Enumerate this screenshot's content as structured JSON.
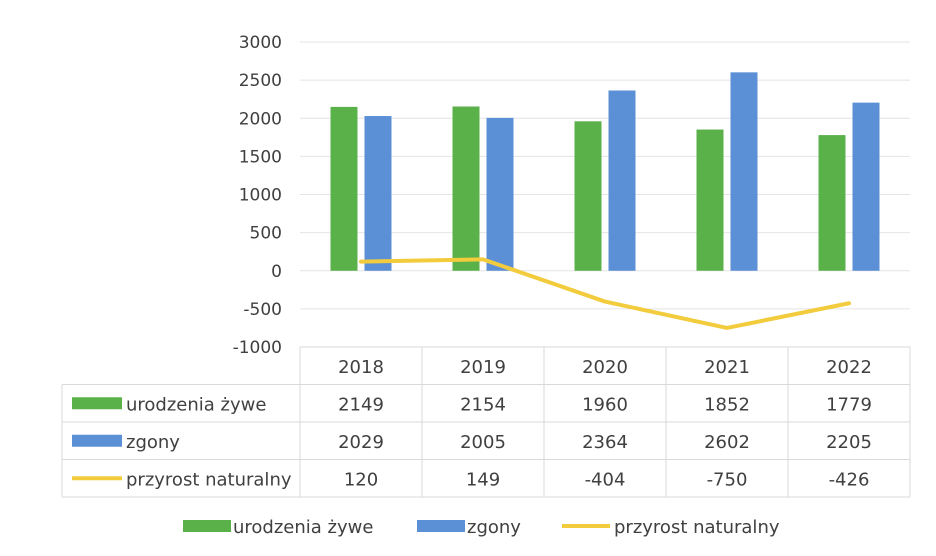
{
  "chart_data": {
    "type": "bar",
    "categories": [
      "2018",
      "2019",
      "2020",
      "2021",
      "2022"
    ],
    "series": [
      {
        "name": "urodzenia żywe",
        "type": "bar",
        "values": [
          2149,
          2154,
          1960,
          1852,
          1779
        ],
        "color": "#5ab14a"
      },
      {
        "name": "zgony",
        "type": "bar",
        "values": [
          2029,
          2005,
          2364,
          2602,
          2205
        ],
        "color": "#5b8fd6"
      },
      {
        "name": "przyrost naturalny",
        "type": "line",
        "values": [
          120,
          149,
          -404,
          -750,
          -426
        ],
        "color": "#f2cc3d"
      }
    ],
    "table_values": [
      [
        "2149",
        "2154",
        "1960",
        "1852",
        "1779"
      ],
      [
        "2029",
        "2005",
        "2364",
        "2602",
        "2205"
      ],
      [
        "120",
        "149",
        "-404",
        "-750",
        "-426"
      ]
    ],
    "yticks": [
      "3000",
      "2500",
      "2000",
      "1500",
      "1000",
      "500",
      "0",
      "-500",
      "-1000"
    ],
    "ylim": [
      -1000,
      3000
    ],
    "grid": true,
    "legend_position": "bottom",
    "data_table": true
  }
}
